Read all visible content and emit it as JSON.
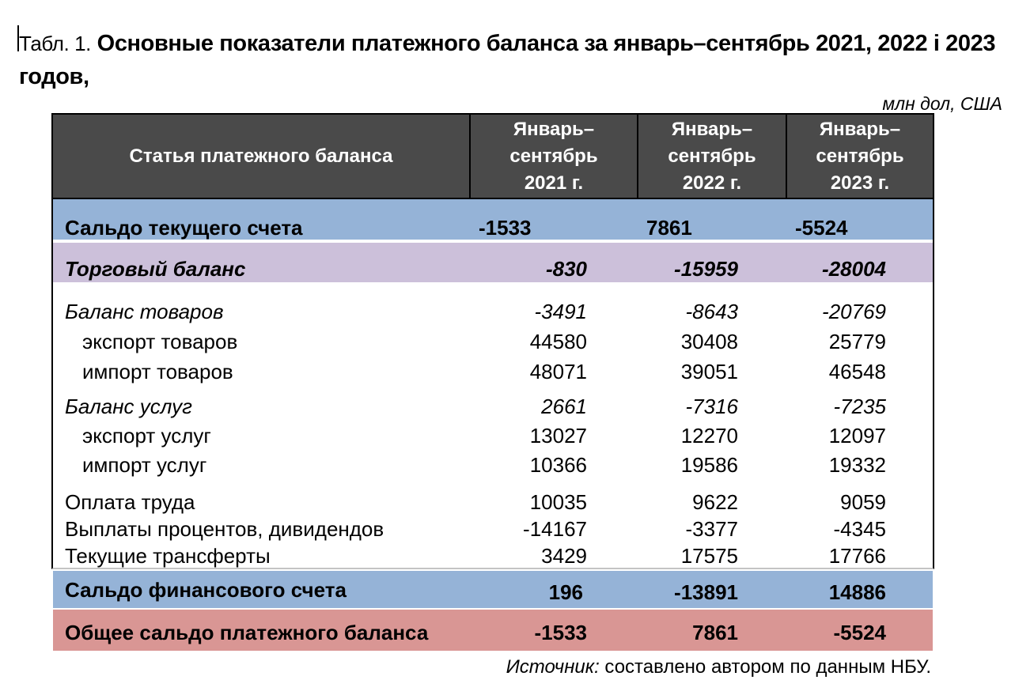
{
  "title": {
    "prefix": "Табл. 1.",
    "bold_line1": "Основные показатели платежного баланса за январь–сентябрь 2021, 2022 і 2023",
    "bold_line2": "годов,"
  },
  "units_note": "млн дол, США",
  "table": {
    "header": {
      "col0": "Статья платежного баланса",
      "cols": [
        "Январь–\nсентябрь\n2021 г.",
        "Январь–\nсентябрь\n2022 г.",
        "Январь–\nсентябрь\n2023 г."
      ]
    },
    "rows": [
      {
        "label": "Сальдо текущего счета",
        "values": [
          "-1533",
          "7861",
          "-5524"
        ],
        "type": "blue1"
      },
      {
        "label": "Торговый баланс",
        "values": [
          "-830",
          "-15959",
          "-28004"
        ],
        "type": "purple"
      },
      {
        "label": "Баланс товаров",
        "values": [
          "-3491",
          "-8643",
          "-20769"
        ],
        "type": "italic"
      },
      {
        "label": "экспорт товаров",
        "values": [
          "44580",
          "30408",
          "25779"
        ],
        "type": "indent"
      },
      {
        "label": "импорт товаров",
        "values": [
          "48071",
          "39051",
          "46548"
        ],
        "type": "indent"
      },
      {
        "label": "Баланс услуг",
        "values": [
          "2661",
          "-7316",
          "-7235"
        ],
        "type": "italic-gap"
      },
      {
        "label": "экспорт услуг",
        "values": [
          "13027",
          "12270",
          "12097"
        ],
        "type": "indent2"
      },
      {
        "label": "импорт услуг",
        "values": [
          "10366",
          "19586",
          "19332"
        ],
        "type": "indent2"
      },
      {
        "label": "Оплата труда",
        "values": [
          "10035",
          "9622",
          "9059"
        ],
        "type": "normal-gap"
      },
      {
        "label": "Выплаты процентов, дивидендов",
        "values": [
          "-14167",
          "-3377",
          "-4345"
        ],
        "type": "normal"
      },
      {
        "label": "Текущие трансферты",
        "values": [
          "3429",
          "17575",
          "17766"
        ],
        "type": "normal"
      },
      {
        "label": "Сальдо финансового счета",
        "values": [
          "196",
          "-13891",
          "14886"
        ],
        "type": "blue2"
      },
      {
        "label": "Общее сальдо платежного баланса",
        "values": [
          "-1533",
          "7861",
          "-5524"
        ],
        "type": "red"
      }
    ]
  },
  "footer": {
    "source_label": "Источник:",
    "source_text": " составлено автором по данным НБУ."
  },
  "colors": {
    "header_bg": "#4a4a4a",
    "blue_row": "#95b3d7",
    "purple_row": "#ccc0da",
    "red_row": "#d99694"
  }
}
